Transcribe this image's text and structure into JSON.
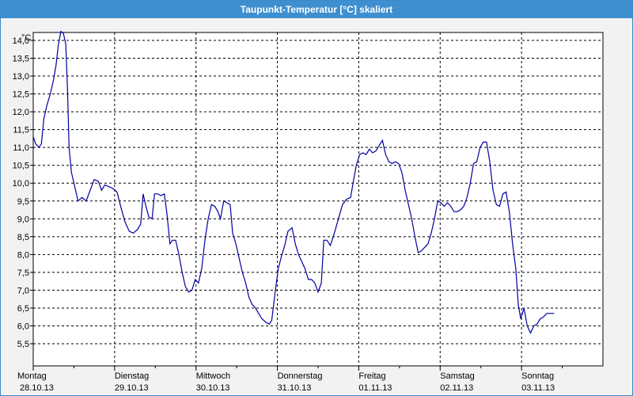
{
  "window": {
    "title": "Taupunkt-Temperatur [°C] skaliert"
  },
  "colors": {
    "title_bar": "#3d8fd0",
    "line": "#0000a0",
    "grid": "#000000",
    "background": "#f2f2f2"
  },
  "chart_data": {
    "type": "line",
    "title": "Taupunkt-Temperatur [°C] skaliert",
    "ylabel": "°C",
    "xlabel": "",
    "ylim": [
      5.5,
      14.5
    ],
    "y_ticks": [
      "14,0",
      "13,5",
      "13,0",
      "12,5",
      "12,0",
      "11,5",
      "11,0",
      "10,5",
      "10,0",
      "9,5",
      "9,0",
      "8,5",
      "8,0",
      "7,5",
      "7,0",
      "6,5",
      "6,0",
      "5,5"
    ],
    "x_unit": "days since Monday 28.10.13 00:00",
    "x_range": [
      0,
      7
    ],
    "grid": true,
    "x_labels": [
      {
        "day": "Montag",
        "date": "28.10.13"
      },
      {
        "day": "Dienstag",
        "date": "29.10.13"
      },
      {
        "day": "Mittwoch",
        "date": "30.10.13"
      },
      {
        "day": "Donnerstag",
        "date": "31.10.13"
      },
      {
        "day": "Freitag",
        "date": "01.11.13"
      },
      {
        "day": "Samstag",
        "date": "02.11.13"
      },
      {
        "day": "Sonntag",
        "date": "03.11.13"
      }
    ],
    "series": [
      {
        "values": [
          [
            0.0,
            11.3
          ],
          [
            0.03,
            11.1
          ],
          [
            0.07,
            11.0
          ],
          [
            0.1,
            11.1
          ],
          [
            0.13,
            11.8
          ],
          [
            0.17,
            12.2
          ],
          [
            0.21,
            12.5
          ],
          [
            0.25,
            12.9
          ],
          [
            0.28,
            13.3
          ],
          [
            0.31,
            13.9
          ],
          [
            0.34,
            14.25
          ],
          [
            0.37,
            14.2
          ],
          [
            0.4,
            13.9
          ],
          [
            0.42,
            12.7
          ],
          [
            0.44,
            11.0
          ],
          [
            0.47,
            10.3
          ],
          [
            0.51,
            9.9
          ],
          [
            0.55,
            9.5
          ],
          [
            0.6,
            9.6
          ],
          [
            0.65,
            9.5
          ],
          [
            0.7,
            9.8
          ],
          [
            0.75,
            10.1
          ],
          [
            0.8,
            10.05
          ],
          [
            0.84,
            9.8
          ],
          [
            0.88,
            9.95
          ],
          [
            0.93,
            9.9
          ],
          [
            0.98,
            9.85
          ],
          [
            1.03,
            9.75
          ],
          [
            1.08,
            9.3
          ],
          [
            1.13,
            8.9
          ],
          [
            1.18,
            8.65
          ],
          [
            1.23,
            8.6
          ],
          [
            1.28,
            8.7
          ],
          [
            1.32,
            8.85
          ],
          [
            1.35,
            9.7
          ],
          [
            1.38,
            9.4
          ],
          [
            1.42,
            9.05
          ],
          [
            1.46,
            9.0
          ],
          [
            1.49,
            9.7
          ],
          [
            1.53,
            9.7
          ],
          [
            1.57,
            9.65
          ],
          [
            1.61,
            9.7
          ],
          [
            1.64,
            9.2
          ],
          [
            1.68,
            8.3
          ],
          [
            1.71,
            8.4
          ],
          [
            1.75,
            8.4
          ],
          [
            1.79,
            8.0
          ],
          [
            1.83,
            7.5
          ],
          [
            1.87,
            7.1
          ],
          [
            1.91,
            6.95
          ],
          [
            1.95,
            7.0
          ],
          [
            1.99,
            7.3
          ],
          [
            2.03,
            7.2
          ],
          [
            2.07,
            7.6
          ],
          [
            2.11,
            8.4
          ],
          [
            2.15,
            9.0
          ],
          [
            2.19,
            9.4
          ],
          [
            2.23,
            9.35
          ],
          [
            2.27,
            9.2
          ],
          [
            2.3,
            9.0
          ],
          [
            2.34,
            9.5
          ],
          [
            2.38,
            9.45
          ],
          [
            2.42,
            9.4
          ],
          [
            2.45,
            8.6
          ],
          [
            2.49,
            8.3
          ],
          [
            2.53,
            7.9
          ],
          [
            2.57,
            7.5
          ],
          [
            2.61,
            7.2
          ],
          [
            2.65,
            6.8
          ],
          [
            2.69,
            6.6
          ],
          [
            2.73,
            6.5
          ],
          [
            2.77,
            6.35
          ],
          [
            2.81,
            6.2
          ],
          [
            2.86,
            6.1
          ],
          [
            2.9,
            6.05
          ],
          [
            2.93,
            6.15
          ],
          [
            2.97,
            6.9
          ],
          [
            3.01,
            7.6
          ],
          [
            3.05,
            7.95
          ],
          [
            3.09,
            8.25
          ],
          [
            3.13,
            8.65
          ],
          [
            3.18,
            8.75
          ],
          [
            3.22,
            8.3
          ],
          [
            3.26,
            8.0
          ],
          [
            3.3,
            7.8
          ],
          [
            3.34,
            7.6
          ],
          [
            3.38,
            7.3
          ],
          [
            3.42,
            7.3
          ],
          [
            3.46,
            7.2
          ],
          [
            3.5,
            6.95
          ],
          [
            3.54,
            7.2
          ],
          [
            3.57,
            8.4
          ],
          [
            3.61,
            8.4
          ],
          [
            3.65,
            8.25
          ],
          [
            3.7,
            8.6
          ],
          [
            3.75,
            9.0
          ],
          [
            3.8,
            9.4
          ],
          [
            3.85,
            9.55
          ],
          [
            3.9,
            9.6
          ],
          [
            3.93,
            10.0
          ],
          [
            3.97,
            10.5
          ],
          [
            4.01,
            10.8
          ],
          [
            4.05,
            10.85
          ],
          [
            4.09,
            10.8
          ],
          [
            4.13,
            10.95
          ],
          [
            4.17,
            10.85
          ],
          [
            4.21,
            10.9
          ],
          [
            4.25,
            11.05
          ],
          [
            4.29,
            11.2
          ],
          [
            4.33,
            10.8
          ],
          [
            4.37,
            10.6
          ],
          [
            4.41,
            10.55
          ],
          [
            4.45,
            10.6
          ],
          [
            4.49,
            10.55
          ],
          [
            4.53,
            10.3
          ],
          [
            4.57,
            9.8
          ],
          [
            4.61,
            9.4
          ],
          [
            4.65,
            9.0
          ],
          [
            4.69,
            8.5
          ],
          [
            4.73,
            8.05
          ],
          [
            4.77,
            8.1
          ],
          [
            4.81,
            8.2
          ],
          [
            4.85,
            8.3
          ],
          [
            4.89,
            8.6
          ],
          [
            4.93,
            9.0
          ],
          [
            4.97,
            9.5
          ],
          [
            5.01,
            9.45
          ],
          [
            5.05,
            9.35
          ],
          [
            5.09,
            9.45
          ],
          [
            5.13,
            9.35
          ],
          [
            5.17,
            9.2
          ],
          [
            5.21,
            9.2
          ],
          [
            5.25,
            9.25
          ],
          [
            5.29,
            9.35
          ],
          [
            5.33,
            9.6
          ],
          [
            5.37,
            10.0
          ],
          [
            5.41,
            10.55
          ],
          [
            5.45,
            10.6
          ],
          [
            5.49,
            11.0
          ],
          [
            5.53,
            11.15
          ],
          [
            5.57,
            11.15
          ],
          [
            5.61,
            10.6
          ],
          [
            5.65,
            9.8
          ],
          [
            5.69,
            9.4
          ],
          [
            5.73,
            9.35
          ],
          [
            5.77,
            9.7
          ],
          [
            5.81,
            9.75
          ],
          [
            5.85,
            9.2
          ],
          [
            5.89,
            8.3
          ],
          [
            5.93,
            7.6
          ],
          [
            5.96,
            6.6
          ],
          [
            5.99,
            6.2
          ],
          [
            6.03,
            6.5
          ],
          [
            6.07,
            6.0
          ],
          [
            6.11,
            5.8
          ],
          [
            6.15,
            6.0
          ],
          [
            6.19,
            6.05
          ],
          [
            6.23,
            6.2
          ],
          [
            6.27,
            6.25
          ],
          [
            6.31,
            6.35
          ],
          [
            6.36,
            6.35
          ],
          [
            6.4,
            6.35
          ]
        ]
      }
    ]
  }
}
